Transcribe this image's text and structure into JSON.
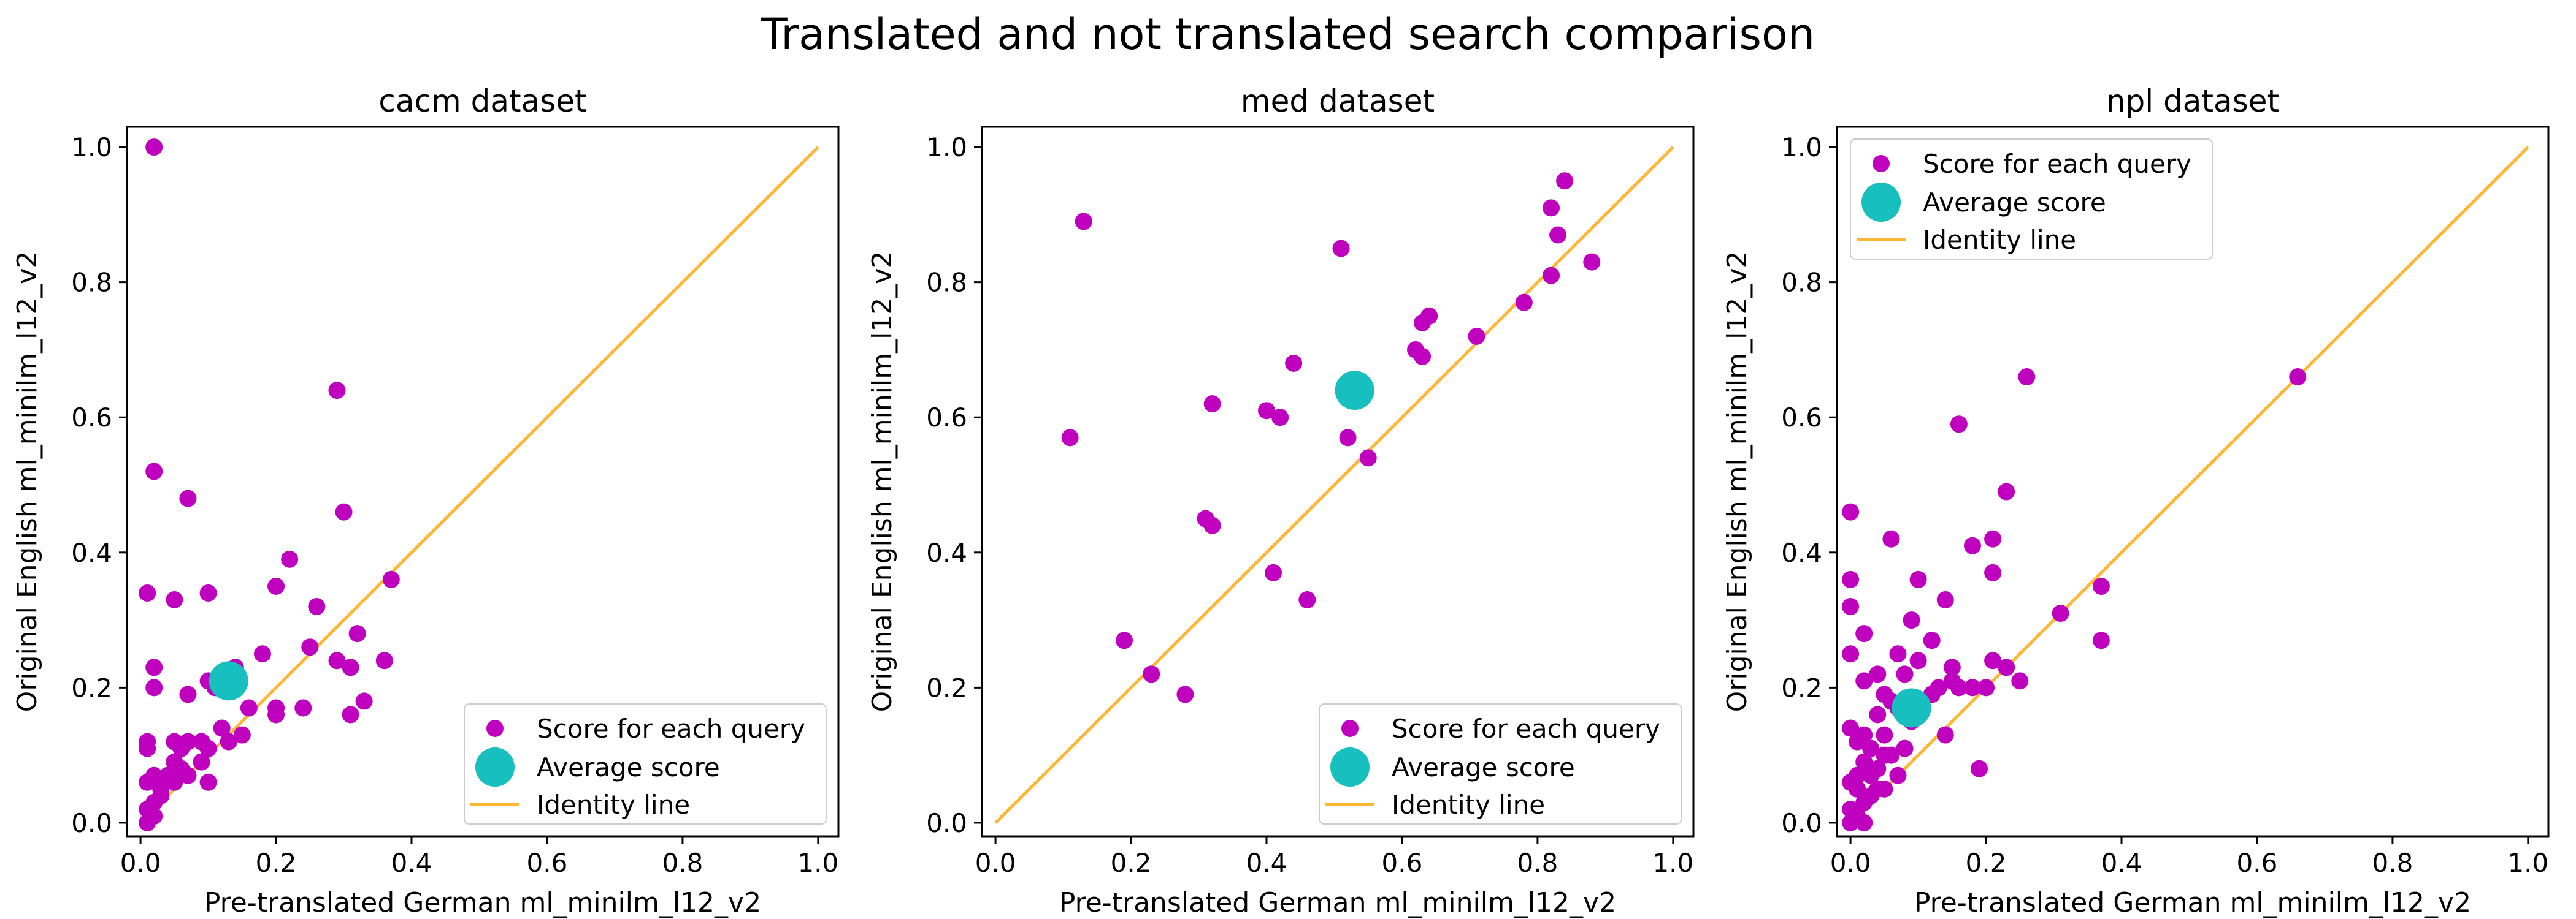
{
  "figure": {
    "suptitle": "Translated and not translated search comparison"
  },
  "colors": {
    "points": "#bf00bf",
    "average": "#17bfbf",
    "identity": "#ffb733"
  },
  "chart_data": [
    {
      "type": "scatter",
      "title": "cacm dataset",
      "xlabel": "Pre-translated German ml_minilm_l12_v2",
      "ylabel": "Original English ml_minilm_l12_v2",
      "xlim": [
        -0.02,
        1.03
      ],
      "ylim": [
        -0.02,
        1.03
      ],
      "xticks": [
        "0.0",
        "0.2",
        "0.4",
        "0.6",
        "0.8",
        "1.0"
      ],
      "yticks": [
        "0.0",
        "0.2",
        "0.4",
        "0.6",
        "0.8",
        "1.0"
      ],
      "legend": {
        "location": "lower-right",
        "entries": [
          "Score for each query",
          "Average score",
          "Identity line"
        ]
      },
      "series": [
        {
          "name": "Score for each query",
          "points": [
            [
              0.02,
              1.0
            ],
            [
              0.29,
              0.64
            ],
            [
              0.02,
              0.52
            ],
            [
              0.07,
              0.48
            ],
            [
              0.3,
              0.46
            ],
            [
              0.22,
              0.39
            ],
            [
              0.37,
              0.36
            ],
            [
              0.01,
              0.34
            ],
            [
              0.05,
              0.33
            ],
            [
              0.1,
              0.34
            ],
            [
              0.2,
              0.35
            ],
            [
              0.26,
              0.32
            ],
            [
              0.25,
              0.26
            ],
            [
              0.18,
              0.25
            ],
            [
              0.29,
              0.24
            ],
            [
              0.31,
              0.23
            ],
            [
              0.32,
              0.28
            ],
            [
              0.36,
              0.24
            ],
            [
              0.02,
              0.23
            ],
            [
              0.02,
              0.2
            ],
            [
              0.1,
              0.21
            ],
            [
              0.14,
              0.23
            ],
            [
              0.11,
              0.2
            ],
            [
              0.33,
              0.18
            ],
            [
              0.16,
              0.17
            ],
            [
              0.2,
              0.17
            ],
            [
              0.24,
              0.17
            ],
            [
              0.07,
              0.19
            ],
            [
              0.31,
              0.16
            ],
            [
              0.2,
              0.16
            ],
            [
              0.12,
              0.14
            ],
            [
              0.15,
              0.13
            ],
            [
              0.01,
              0.12
            ],
            [
              0.01,
              0.11
            ],
            [
              0.05,
              0.12
            ],
            [
              0.06,
              0.11
            ],
            [
              0.07,
              0.12
            ],
            [
              0.09,
              0.12
            ],
            [
              0.1,
              0.11
            ],
            [
              0.13,
              0.12
            ],
            [
              0.05,
              0.09
            ],
            [
              0.06,
              0.08
            ],
            [
              0.09,
              0.09
            ],
            [
              0.04,
              0.07
            ],
            [
              0.07,
              0.07
            ],
            [
              0.02,
              0.07
            ],
            [
              0.05,
              0.06
            ],
            [
              0.1,
              0.06
            ],
            [
              0.01,
              0.06
            ],
            [
              0.03,
              0.04
            ],
            [
              0.02,
              0.03
            ],
            [
              0.01,
              0.02
            ],
            [
              0.02,
              0.01
            ],
            [
              0.01,
              0.0
            ],
            [
              0.03,
              0.05
            ]
          ]
        },
        {
          "name": "Average score",
          "points": [
            [
              0.13,
              0.21
            ]
          ]
        },
        {
          "name": "Identity line",
          "line": [
            [
              0,
              0
            ],
            [
              1,
              1
            ]
          ]
        }
      ]
    },
    {
      "type": "scatter",
      "title": "med dataset",
      "xlabel": "Pre-translated German ml_minilm_l12_v2",
      "ylabel": "Original English ml_minilm_l12_v2",
      "xlim": [
        -0.02,
        1.03
      ],
      "ylim": [
        -0.02,
        1.03
      ],
      "xticks": [
        "0.0",
        "0.2",
        "0.4",
        "0.6",
        "0.8",
        "1.0"
      ],
      "yticks": [
        "0.0",
        "0.2",
        "0.4",
        "0.6",
        "0.8",
        "1.0"
      ],
      "legend": {
        "location": "lower-right",
        "entries": [
          "Score for each query",
          "Average score",
          "Identity line"
        ]
      },
      "series": [
        {
          "name": "Score for each query",
          "points": [
            [
              0.13,
              0.89
            ],
            [
              0.11,
              0.57
            ],
            [
              0.84,
              0.95
            ],
            [
              0.82,
              0.91
            ],
            [
              0.83,
              0.87
            ],
            [
              0.51,
              0.85
            ],
            [
              0.88,
              0.83
            ],
            [
              0.82,
              0.81
            ],
            [
              0.78,
              0.77
            ],
            [
              0.64,
              0.75
            ],
            [
              0.63,
              0.74
            ],
            [
              0.71,
              0.72
            ],
            [
              0.62,
              0.7
            ],
            [
              0.63,
              0.69
            ],
            [
              0.44,
              0.68
            ],
            [
              0.32,
              0.62
            ],
            [
              0.4,
              0.61
            ],
            [
              0.42,
              0.6
            ],
            [
              0.52,
              0.57
            ],
            [
              0.55,
              0.54
            ],
            [
              0.31,
              0.45
            ],
            [
              0.32,
              0.44
            ],
            [
              0.41,
              0.37
            ],
            [
              0.46,
              0.33
            ],
            [
              0.19,
              0.27
            ],
            [
              0.23,
              0.22
            ],
            [
              0.28,
              0.19
            ]
          ]
        },
        {
          "name": "Average score",
          "points": [
            [
              0.53,
              0.64
            ]
          ]
        },
        {
          "name": "Identity line",
          "line": [
            [
              0,
              0
            ],
            [
              1,
              1
            ]
          ]
        }
      ]
    },
    {
      "type": "scatter",
      "title": "npl dataset",
      "xlabel": "Pre-translated German ml_minilm_l12_v2",
      "ylabel": "Original English ml_minilm_l12_v2",
      "xlim": [
        -0.02,
        1.03
      ],
      "ylim": [
        -0.02,
        1.03
      ],
      "xticks": [
        "0.0",
        "0.2",
        "0.4",
        "0.6",
        "0.8",
        "1.0"
      ],
      "yticks": [
        "0.0",
        "0.2",
        "0.4",
        "0.6",
        "0.8",
        "1.0"
      ],
      "legend": {
        "location": "upper-left",
        "entries": [
          "Score for each query",
          "Average score",
          "Identity line"
        ]
      },
      "series": [
        {
          "name": "Score for each query",
          "points": [
            [
              0.26,
              0.66
            ],
            [
              0.66,
              0.66
            ],
            [
              0.16,
              0.59
            ],
            [
              0.23,
              0.49
            ],
            [
              0.0,
              0.46
            ],
            [
              0.06,
              0.42
            ],
            [
              0.18,
              0.41
            ],
            [
              0.21,
              0.42
            ],
            [
              0.0,
              0.36
            ],
            [
              0.1,
              0.36
            ],
            [
              0.37,
              0.35
            ],
            [
              0.21,
              0.37
            ],
            [
              0.0,
              0.32
            ],
            [
              0.14,
              0.33
            ],
            [
              0.31,
              0.31
            ],
            [
              0.02,
              0.28
            ],
            [
              0.09,
              0.3
            ],
            [
              0.12,
              0.27
            ],
            [
              0.37,
              0.27
            ],
            [
              0.0,
              0.25
            ],
            [
              0.07,
              0.25
            ],
            [
              0.1,
              0.24
            ],
            [
              0.21,
              0.24
            ],
            [
              0.23,
              0.23
            ],
            [
              0.15,
              0.23
            ],
            [
              0.04,
              0.22
            ],
            [
              0.08,
              0.22
            ],
            [
              0.02,
              0.21
            ],
            [
              0.15,
              0.21
            ],
            [
              0.25,
              0.21
            ],
            [
              0.13,
              0.2
            ],
            [
              0.18,
              0.2
            ],
            [
              0.2,
              0.2
            ],
            [
              0.16,
              0.2
            ],
            [
              0.05,
              0.19
            ],
            [
              0.06,
              0.18
            ],
            [
              0.1,
              0.18
            ],
            [
              0.12,
              0.19
            ],
            [
              0.04,
              0.16
            ],
            [
              0.07,
              0.17
            ],
            [
              0.09,
              0.15
            ],
            [
              0.0,
              0.14
            ],
            [
              0.01,
              0.12
            ],
            [
              0.02,
              0.13
            ],
            [
              0.05,
              0.13
            ],
            [
              0.14,
              0.13
            ],
            [
              0.03,
              0.11
            ],
            [
              0.05,
              0.1
            ],
            [
              0.06,
              0.1
            ],
            [
              0.08,
              0.11
            ],
            [
              0.02,
              0.09
            ],
            [
              0.04,
              0.08
            ],
            [
              0.19,
              0.08
            ],
            [
              0.01,
              0.07
            ],
            [
              0.03,
              0.07
            ],
            [
              0.07,
              0.07
            ],
            [
              0.0,
              0.06
            ],
            [
              0.01,
              0.05
            ],
            [
              0.03,
              0.04
            ],
            [
              0.02,
              0.03
            ],
            [
              0.04,
              0.05
            ],
            [
              0.05,
              0.05
            ],
            [
              0.0,
              0.02
            ],
            [
              0.01,
              0.01
            ],
            [
              0.0,
              0.0
            ],
            [
              0.02,
              0.0
            ]
          ]
        },
        {
          "name": "Average score",
          "points": [
            [
              0.09,
              0.17
            ]
          ]
        },
        {
          "name": "Identity line",
          "line": [
            [
              0,
              0
            ],
            [
              1,
              1
            ]
          ]
        }
      ]
    }
  ]
}
